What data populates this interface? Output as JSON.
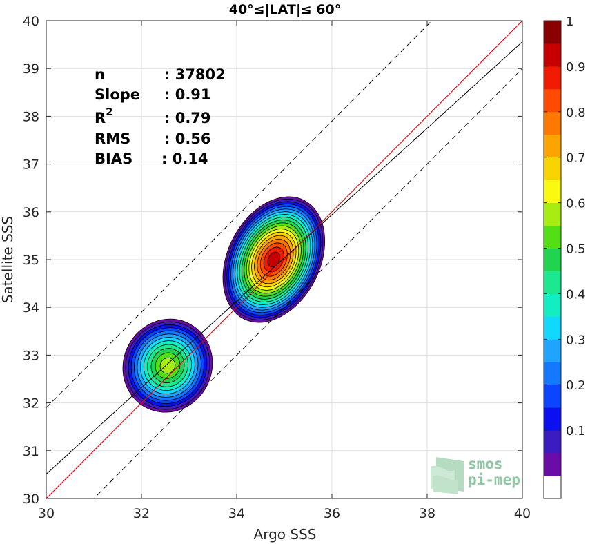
{
  "chart_data": {
    "type": "scatter",
    "title": "40°≤|LAT|≤ 60°",
    "xlabel": "Argo SSS",
    "ylabel": "Satellite SSS",
    "xlim": [
      30,
      40
    ],
    "ylim": [
      30,
      40
    ],
    "x_ticks": [
      "30",
      "32",
      "34",
      "36",
      "38",
      "40"
    ],
    "y_ticks": [
      "30",
      "31",
      "32",
      "33",
      "34",
      "35",
      "36",
      "37",
      "38",
      "39",
      "40"
    ],
    "grid": true,
    "stats": {
      "n_label": "n",
      "n_value": ": 37802",
      "slope_label": "Slope",
      "slope_value": ": 0.91",
      "r2_label_base": "R",
      "r2_label_sup": "2",
      "r2_value": ": 0.79",
      "rms_label": "RMS",
      "rms_value": ": 0.56",
      "bias_label": "BIAS",
      "bias_value": ": 0.14"
    },
    "lines": {
      "one_to_one": {
        "slope": 1,
        "intercept": 0,
        "color": "#e8000b"
      },
      "fit": {
        "slope": 0.905,
        "intercept": 3.36,
        "color": "#000000"
      },
      "upper_bound": {
        "slope": 1,
        "intercept": 1.9,
        "style": "dashed"
      },
      "lower_bound": {
        "slope": 1,
        "intercept": -1.0,
        "style": "dashed"
      }
    },
    "density_clusters": [
      {
        "name": "cluster-low",
        "center": [
          32.55,
          32.78
        ],
        "rx": 1.05,
        "ry": 0.98,
        "rot": -63,
        "peak": 0.65
      },
      {
        "name": "cluster-high",
        "center": [
          34.78,
          35.0
        ],
        "rx": 1.45,
        "ry": 1.0,
        "rot": -63,
        "peak": 1.0
      }
    ],
    "colorbar": {
      "ticks": [
        "0.1",
        "0.2",
        "0.3",
        "0.4",
        "0.5",
        "0.6",
        "0.7",
        "0.8",
        "0.9",
        "1"
      ],
      "levels": [
        0,
        0.05,
        0.1,
        0.15,
        0.2,
        0.25,
        0.3,
        0.35,
        0.4,
        0.45,
        0.5,
        0.55,
        0.6,
        0.65,
        0.7,
        0.75,
        0.8,
        0.85,
        0.9,
        0.95,
        1.0
      ],
      "colors": [
        "#ffffff",
        "#6a0ca8",
        "#3a1cc0",
        "#0a10f0",
        "#0a46ff",
        "#1478ff",
        "#1fa4ff",
        "#10d8ff",
        "#12eec2",
        "#1ce890",
        "#20d450",
        "#52df16",
        "#a8ec12",
        "#f8f810",
        "#f8d400",
        "#fca400",
        "#ff7800",
        "#ff4a00",
        "#f01a00",
        "#c60000",
        "#8a0000"
      ]
    }
  },
  "logo": {
    "line1": "smos",
    "line2": "pi-mep"
  }
}
